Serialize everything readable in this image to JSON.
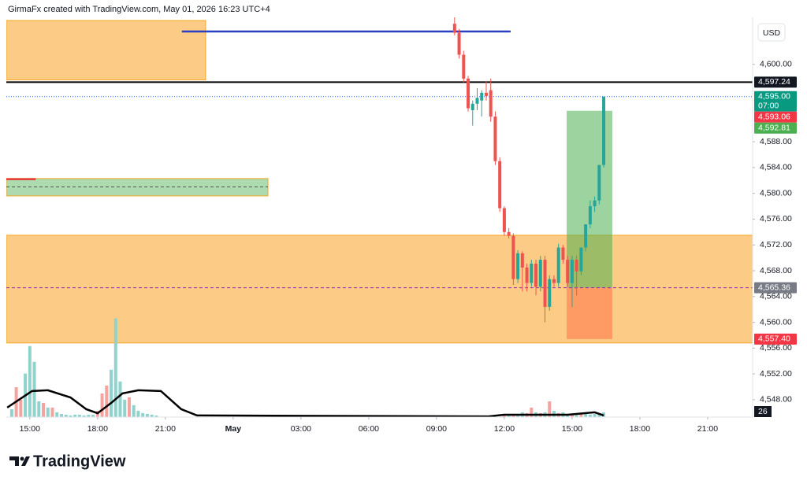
{
  "header": {
    "title": "GirmaFx created with TradingView.com, May 01, 2026 16:23 UTC+4",
    "currency": "USD"
  },
  "footer": {
    "brand": "TradingView"
  },
  "chart_data": {
    "type": "candlestick",
    "xlim": [
      -10.04,
      22.99
    ],
    "ylim": [
      4545.3,
      4607.3
    ],
    "grid": false,
    "xticks": [
      {
        "value": -9,
        "label": "15:00"
      },
      {
        "value": -6,
        "label": "18:00"
      },
      {
        "value": -3,
        "label": "21:00"
      },
      {
        "value": 0,
        "label": "May"
      },
      {
        "value": 3,
        "label": "03:00"
      },
      {
        "value": 6,
        "label": "06:00"
      },
      {
        "value": 9,
        "label": "09:00"
      },
      {
        "value": 12,
        "label": "12:00"
      },
      {
        "value": 15,
        "label": "15:00"
      },
      {
        "value": 18,
        "label": "18:00"
      },
      {
        "value": 21,
        "label": "21:00"
      }
    ],
    "yticks": [
      {
        "value": 4548,
        "label": "4,548.00"
      },
      {
        "value": 4552,
        "label": "4,552.00"
      },
      {
        "value": 4556,
        "label": "4,556.00"
      },
      {
        "value": 4560,
        "label": "4,560.00"
      },
      {
        "value": 4564,
        "label": "4,564.00"
      },
      {
        "value": 4568,
        "label": "4,568.00"
      },
      {
        "value": 4572,
        "label": "4,572.00"
      },
      {
        "value": 4576,
        "label": "4,576.00"
      },
      {
        "value": 4580,
        "label": "4,580.00"
      },
      {
        "value": 4584,
        "label": "4,584.00"
      },
      {
        "value": 4588,
        "label": "4,588.00"
      },
      {
        "value": 4600,
        "label": "4,600.00"
      }
    ],
    "candles": {
      "up_color": "#26a69a",
      "down_color": "#ef5350",
      "x": [
        9.8,
        10.0,
        10.2,
        10.4,
        10.6,
        10.8,
        11.0,
        11.2,
        11.4,
        11.6,
        11.8,
        12.0,
        12.2,
        12.4,
        12.6,
        12.8,
        13.0,
        13.2,
        13.4,
        13.6,
        13.8,
        14.0,
        14.2,
        14.4,
        14.6,
        14.8,
        15.0,
        15.2,
        15.4,
        15.6,
        15.8,
        16.0,
        16.2,
        16.4
      ],
      "open": [
        4606.3,
        4604.9,
        4601.5,
        4597.8,
        4592.9,
        4593.9,
        4594.4,
        4595.6,
        4596.0,
        4591.9,
        4585.0,
        4577.7,
        4574.0,
        4573.4,
        4566.7,
        4570.7,
        4568.5,
        4566.1,
        4569.1,
        4565.5,
        4569.7,
        4562.4,
        4566.7,
        4566.1,
        4571.6,
        4569.7,
        4566.1,
        4569.7,
        4567.9,
        4571.6,
        4575.2,
        4578.0,
        4578.9,
        4584.4
      ],
      "high": [
        4607.3,
        4605.5,
        4602.1,
        4598.2,
        4594.4,
        4596.3,
        4596.0,
        4597.4,
        4597.8,
        4592.7,
        4585.6,
        4578.0,
        4574.6,
        4573.8,
        4571.2,
        4571.0,
        4569.1,
        4569.7,
        4569.7,
        4570.3,
        4570.3,
        4567.3,
        4567.3,
        4572.2,
        4572.0,
        4570.3,
        4570.3,
        4570.3,
        4571.6,
        4575.2,
        4578.9,
        4579.5,
        4584.4,
        4595.0
      ],
      "low": [
        4604.5,
        4600.9,
        4597.2,
        4592.7,
        4590.5,
        4592.9,
        4591.9,
        4594.4,
        4591.1,
        4584.4,
        4577.1,
        4573.4,
        4573.0,
        4565.8,
        4566.1,
        4564.8,
        4564.8,
        4565.5,
        4564.2,
        4564.8,
        4560.0,
        4561.8,
        4565.5,
        4565.5,
        4569.1,
        4565.5,
        4562.4,
        4564.2,
        4567.3,
        4571.0,
        4574.6,
        4577.1,
        4578.3,
        4584.0
      ],
      "close": [
        4604.9,
        4601.5,
        4597.8,
        4593.2,
        4593.9,
        4594.8,
        4595.6,
        4595.1,
        4591.9,
        4585.0,
        4577.7,
        4574.0,
        4573.4,
        4566.7,
        4570.7,
        4568.5,
        4566.1,
        4569.1,
        4565.5,
        4569.7,
        4562.4,
        4566.7,
        4566.1,
        4571.6,
        4569.7,
        4566.1,
        4569.7,
        4567.9,
        4571.6,
        4575.2,
        4578.0,
        4578.9,
        4584.4,
        4595.0
      ]
    },
    "volume": {
      "vlim": [
        0,
        600
      ],
      "x": [
        -9.8,
        -9.6,
        -9.4,
        -9.2,
        -9.0,
        -8.8,
        -8.6,
        -8.4,
        -8.2,
        -8.0,
        -7.8,
        -7.6,
        -7.4,
        -7.2,
        -7.0,
        -6.8,
        -6.6,
        -6.4,
        -6.2,
        -6.0,
        -5.8,
        -5.6,
        -5.4,
        -5.2,
        -5.0,
        -4.8,
        -4.6,
        -4.4,
        -4.2,
        -4.0,
        -3.8,
        -3.6,
        -3.4,
        12.0,
        12.2,
        12.4,
        12.6,
        12.8,
        13.0,
        13.2,
        13.4,
        13.6,
        13.8,
        14.0,
        14.2,
        14.4,
        14.6,
        14.8,
        15.0,
        15.2,
        15.4,
        15.6,
        15.8,
        16.0,
        16.2,
        16.4
      ],
      "values": [
        43,
        163,
        95,
        237,
        387,
        301,
        86,
        77,
        52,
        52,
        26,
        17,
        13,
        9,
        13,
        13,
        9,
        13,
        13,
        34,
        129,
        172,
        258,
        538,
        194,
        95,
        108,
        65,
        34,
        22,
        17,
        13,
        9,
        13,
        17,
        13,
        17,
        26,
        22,
        52,
        26,
        22,
        26,
        86,
        34,
        22,
        26,
        17,
        17,
        13,
        22,
        17,
        13,
        17,
        13,
        26
      ],
      "colors": [
        "#8fd3cc",
        "#f5a3a1",
        "#f5a3a1",
        "#8fd3cc",
        "#8fd3cc",
        "#8fd3cc",
        "#8fd3cc",
        "#f5a3a1",
        "#8fd3cc",
        "#f5a3a1",
        "#8fd3cc",
        "#8fd3cc",
        "#8fd3cc",
        "#8fd3cc",
        "#8fd3cc",
        "#8fd3cc",
        "#8fd3cc",
        "#8fd3cc",
        "#8fd3cc",
        "#f5a3a1",
        "#f5a3a1",
        "#f5a3a1",
        "#8fd3cc",
        "#8fd3cc",
        "#8fd3cc",
        "#8fd3cc",
        "#f5a3a1",
        "#8fd3cc",
        "#8fd3cc",
        "#8fd3cc",
        "#8fd3cc",
        "#8fd3cc",
        "#8fd3cc",
        "#f5a3a1",
        "#8fd3cc",
        "#f5a3a1",
        "#8fd3cc",
        "#8fd3cc",
        "#f5a3a1",
        "#f5a3a1",
        "#8fd3cc",
        "#f5a3a1",
        "#8fd3cc",
        "#f5a3a1",
        "#8fd3cc",
        "#f5a3a1",
        "#8fd3cc",
        "#8fd3cc",
        "#f5a3a1",
        "#8fd3cc",
        "#f5a3a1",
        "#8fd3cc",
        "#8fd3cc",
        "#8fd3cc",
        "#8fd3cc",
        "#8fd3cc"
      ],
      "ma": {
        "color": "#000000",
        "x": [
          -10.0,
          -8.9,
          -8.2,
          -7.2,
          -6.5,
          -6.0,
          -5.4,
          -4.9,
          -4.2,
          -3.2,
          -2.3,
          -1.6,
          11.3,
          12.0,
          14.8,
          16.0,
          16.4
        ],
        "values": [
          52,
          142,
          146,
          107,
          43,
          21,
          77,
          129,
          146,
          142,
          43,
          9,
          4,
          13,
          13,
          26,
          9
        ]
      }
    },
    "zones": [
      {
        "range": [
          4556.8,
          4573.5
        ],
        "x": [
          -10.04,
          22.99
        ],
        "fill": "#fcc779",
        "stroke": "#f5a623"
      },
      {
        "range": [
          4597.6,
          4606.8
        ],
        "x": [
          -10.04,
          -1.22
        ],
        "fill": "#fcc779",
        "stroke": "#f5a623"
      },
      {
        "range": [
          4579.6,
          4582.3
        ],
        "x": [
          -10.04,
          1.54
        ],
        "fill": "#a5d6a7",
        "stroke": "#f5a623"
      }
    ],
    "segments": [
      {
        "price": 4605.1,
        "x": [
          -2.27,
          12.28
        ],
        "color": "#2b3fc4",
        "width": 2.5,
        "dash": "none"
      },
      {
        "price": 4582.2,
        "x": [
          -10.04,
          -8.74
        ],
        "color": "#e53935",
        "width": 2.5,
        "dash": "none"
      },
      {
        "price": 4581.0,
        "x": [
          -10.04,
          1.54
        ],
        "color": "#555555",
        "width": 1,
        "dash": "4,3"
      },
      {
        "price": 4597.24,
        "x": [
          -10.04,
          22.99
        ],
        "color": "#000000",
        "width": 2,
        "dash": "none"
      },
      {
        "price": 4595.0,
        "x": [
          -10.04,
          22.99
        ],
        "color": "#2962ff",
        "width": 1,
        "dash": "1,2"
      },
      {
        "price": 4565.36,
        "x": [
          -10.04,
          22.99
        ],
        "color": "#9c27b0",
        "width": 1,
        "dash": "4,3"
      }
    ],
    "position": {
      "entry": 4565.36,
      "target": 4592.81,
      "stop": 4557.4,
      "x": [
        14.76,
        16.78
      ],
      "profit_color": "#4caf50",
      "loss_color": "#ff7f50"
    },
    "price_labels": [
      {
        "value": 4597.24,
        "label": "4,597.24",
        "color": "#131722"
      },
      {
        "value": 4595.0,
        "label": "4,595.00",
        "sub": "07:00",
        "color": "#089981"
      },
      {
        "value": 4593.06,
        "label": "4,593.06",
        "color": "#f23645"
      },
      {
        "value": 4592.81,
        "label": "4,592.81",
        "color": "#4caf50"
      },
      {
        "value": 4565.36,
        "label": "4,565.36",
        "color": "#787b86"
      },
      {
        "value": 4557.4,
        "label": "4,557.40",
        "color": "#f23645"
      }
    ]
  }
}
